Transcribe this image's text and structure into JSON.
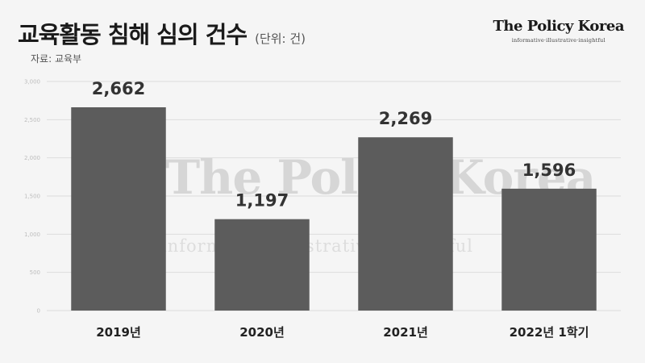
{
  "header": {
    "title": "교육활동 침해 심의 건수",
    "unit": "(단위: 건)",
    "source": "자료: 교육부"
  },
  "brand": {
    "name": "The Policy Korea",
    "tagline": "informative·illustrative·insightful"
  },
  "colors": {
    "bar": "#5c5c5c",
    "grid": "#dcdcdc",
    "background": "#f5f5f5"
  },
  "chart_data": {
    "type": "bar",
    "categories": [
      "2019년",
      "2020년",
      "2021년",
      "2022년 1학기"
    ],
    "values": [
      2662,
      1197,
      2269,
      1596
    ],
    "value_labels": [
      "2,662",
      "1,197",
      "2,269",
      "1,596"
    ],
    "yticks": [
      "0",
      "500",
      "1,000",
      "1,500",
      "2,000",
      "2,500",
      "3,000"
    ],
    "ylim": [
      0,
      3000
    ],
    "grid": true,
    "title": "교육활동 침해 심의 건수",
    "xlabel": "",
    "ylabel": ""
  }
}
